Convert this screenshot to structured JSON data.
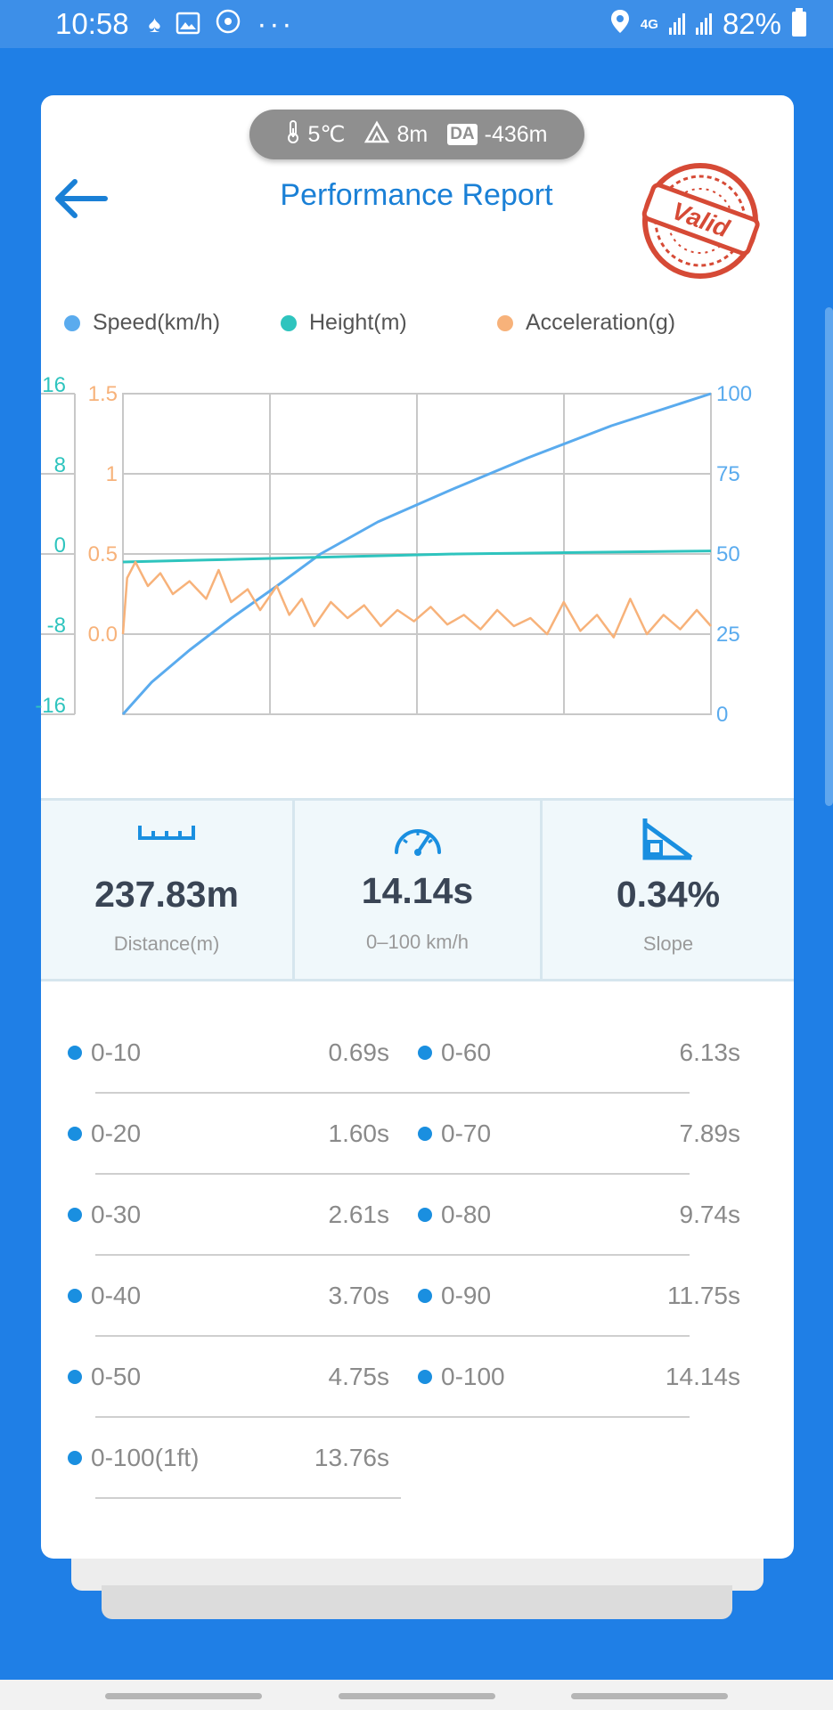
{
  "status_bar": {
    "time": "10:58",
    "network": "4G",
    "battery": "82%"
  },
  "conditions": {
    "temperature": "5℃",
    "altitude": "8m",
    "da_badge": "DA",
    "density_altitude": "-436m"
  },
  "header": {
    "title": "Performance Report",
    "stamp_text": "Valid"
  },
  "legend": [
    {
      "label": "Speed(km/h)",
      "color": "#5aabee"
    },
    {
      "label": "Height(m)",
      "color": "#2ec4be"
    },
    {
      "label": "Acceleration(g)",
      "color": "#f7b27a"
    }
  ],
  "chart_data": {
    "type": "line",
    "axes": {
      "height_axis": {
        "ticks": [
          "16",
          "8",
          "0",
          "-8",
          "-16"
        ],
        "range": [
          -16,
          16
        ],
        "color": "#2ec4be"
      },
      "acceleration_axis": {
        "ticks": [
          "1.5",
          "1",
          "0.5",
          "0.0"
        ],
        "range": [
          -0.5,
          1.5
        ],
        "color": "#f7b27a"
      },
      "speed_axis": {
        "ticks": [
          "100",
          "75",
          "50",
          "25",
          "0"
        ],
        "range": [
          0,
          100
        ],
        "color": "#5aabee"
      }
    },
    "grid": true,
    "series": [
      {
        "name": "Speed(km/h)",
        "color": "#5aabee",
        "x": [
          0,
          0.69,
          1.6,
          2.61,
          3.7,
          4.75,
          6.13,
          7.89,
          9.74,
          11.75,
          14.14
        ],
        "y": [
          0,
          10,
          20,
          30,
          40,
          50,
          60,
          70,
          80,
          90,
          100
        ]
      },
      {
        "name": "Height(m)",
        "color": "#2ec4be",
        "x": [
          0,
          2,
          4,
          6,
          8,
          10,
          12,
          14.14
        ],
        "y": [
          -0.8,
          -0.6,
          -0.4,
          -0.2,
          0.0,
          0.1,
          0.2,
          0.3
        ]
      },
      {
        "name": "Acceleration(g)",
        "color": "#f7b27a",
        "x": [
          0,
          0.1,
          0.3,
          0.6,
          0.9,
          1.2,
          1.6,
          2.0,
          2.3,
          2.6,
          3.0,
          3.3,
          3.7,
          4.0,
          4.3,
          4.6,
          5.0,
          5.4,
          5.8,
          6.2,
          6.6,
          7.0,
          7.4,
          7.8,
          8.2,
          8.6,
          9.0,
          9.4,
          9.8,
          10.2,
          10.6,
          11.0,
          11.4,
          11.8,
          12.2,
          12.6,
          13.0,
          13.4,
          13.8,
          14.14
        ],
        "y": [
          0.0,
          0.35,
          0.45,
          0.3,
          0.38,
          0.25,
          0.33,
          0.22,
          0.4,
          0.2,
          0.28,
          0.15,
          0.3,
          0.12,
          0.22,
          0.05,
          0.2,
          0.1,
          0.18,
          0.05,
          0.15,
          0.08,
          0.17,
          0.06,
          0.12,
          0.03,
          0.15,
          0.05,
          0.1,
          0.0,
          0.2,
          0.02,
          0.12,
          -0.02,
          0.22,
          0.0,
          0.12,
          0.03,
          0.15,
          0.05
        ]
      }
    ]
  },
  "stats": [
    {
      "icon": "ruler-icon",
      "value": "237.83m",
      "label": "Distance(m)"
    },
    {
      "icon": "speedometer-icon",
      "value": "14.14s",
      "label": "0–100 km/h"
    },
    {
      "icon": "slope-icon",
      "value": "0.34%",
      "label": "Slope"
    }
  ],
  "splits": {
    "left": [
      {
        "name": "0-10",
        "time": "0.69s"
      },
      {
        "name": "0-20",
        "time": "1.60s"
      },
      {
        "name": "0-30",
        "time": "2.61s"
      },
      {
        "name": "0-40",
        "time": "3.70s"
      },
      {
        "name": "0-50",
        "time": "4.75s"
      },
      {
        "name": "0-100(1ft)",
        "time": "13.76s"
      }
    ],
    "right": [
      {
        "name": "0-60",
        "time": "6.13s"
      },
      {
        "name": "0-70",
        "time": "7.89s"
      },
      {
        "name": "0-80",
        "time": "9.74s"
      },
      {
        "name": "0-90",
        "time": "11.75s"
      },
      {
        "name": "0-100",
        "time": "14.14s"
      }
    ]
  }
}
